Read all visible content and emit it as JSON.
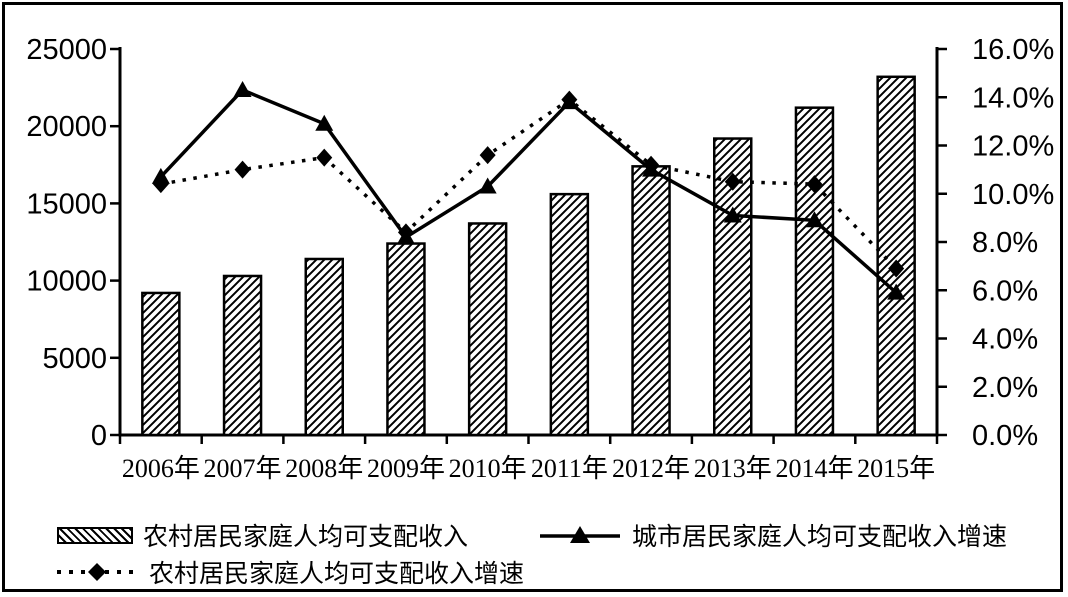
{
  "chart_data": {
    "type": "combo",
    "title": "",
    "categories": [
      "2006年",
      "2007年",
      "2008年",
      "2009年",
      "2010年",
      "2011年",
      "2012年",
      "2013年",
      "2014年",
      "2015年"
    ],
    "series": [
      {
        "name": "农村居民家庭人均可支配收入",
        "kind": "bar",
        "axis": "left",
        "values": [
          9200,
          10300,
          11400,
          12400,
          13700,
          15600,
          17400,
          19200,
          21200,
          23200
        ]
      },
      {
        "name": "城市居民家庭人均可支配收入增速",
        "kind": "line",
        "style": "solid",
        "marker": "triangle",
        "axis": "right",
        "values": [
          10.7,
          14.3,
          12.9,
          8.2,
          10.3,
          13.8,
          11.0,
          9.1,
          8.9,
          5.9
        ]
      },
      {
        "name": "农村居民家庭人均可支配收入增速",
        "kind": "line",
        "style": "dashed",
        "marker": "diamond",
        "axis": "right",
        "values": [
          10.4,
          11.0,
          11.5,
          8.4,
          11.6,
          13.9,
          11.2,
          10.5,
          10.4,
          6.9
        ]
      }
    ],
    "left_axis": {
      "min": 0,
      "max": 25000,
      "tick_values": [
        0,
        5000,
        10000,
        15000,
        20000,
        25000
      ],
      "tick_labels": [
        "0",
        "5000",
        "10000",
        "15000",
        "20000",
        "25000"
      ]
    },
    "right_axis": {
      "min": 0,
      "max": 16,
      "tick_values": [
        0,
        2,
        4,
        6,
        8,
        10,
        12,
        14,
        16
      ],
      "tick_labels": [
        "0.0%",
        "2.0%",
        "4.0%",
        "6.0%",
        "8.0%",
        "10.0%",
        "12.0%",
        "14.0%",
        "16.0%"
      ]
    },
    "grid": false,
    "legend_position": "bottom",
    "colors": {
      "foreground": "#000000",
      "background": "#ffffff"
    }
  },
  "legend": {
    "items": [
      {
        "label": "农村居民家庭人均可支配收入",
        "marker": "hatched-bar"
      },
      {
        "label": "城市居民家庭人均可支配收入增速",
        "marker": "solid-line-triangle"
      },
      {
        "label": "农村居民家庭人均可支配收入增速",
        "marker": "dashed-line-diamond"
      }
    ]
  }
}
